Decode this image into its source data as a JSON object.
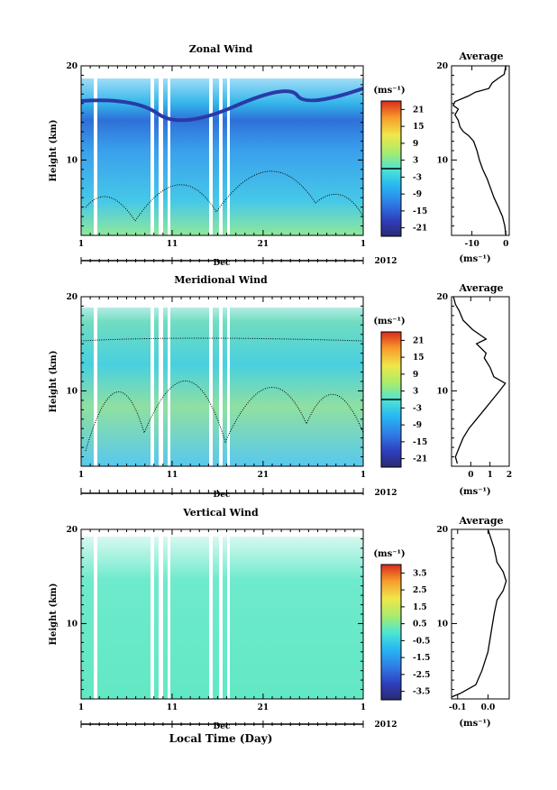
{
  "x_axis": {
    "ticks": [
      "1",
      "11",
      "21",
      "1"
    ],
    "month": "Dec",
    "year": "2012",
    "title": "Local Time (Day)"
  },
  "unit_label": "(ms⁻¹)",
  "chart_data": [
    {
      "type": "heatmap",
      "title": "Zonal Wind",
      "ylabel": "Height (km)",
      "ylim": [
        2,
        20
      ],
      "yticks": [
        "10",
        "20"
      ],
      "xlim_days": [
        1,
        32
      ],
      "colorbar": {
        "ticks": [
          "21",
          "15",
          "9",
          "3",
          "-3",
          "-9",
          "-15",
          "-21"
        ],
        "range": [
          -24,
          24
        ]
      },
      "profile": {
        "title": "Average",
        "xlabel": "(ms⁻¹)",
        "xlim": [
          -16,
          1
        ],
        "xticks": [
          "-10",
          "0"
        ],
        "tick_values": [
          -10,
          0
        ],
        "points": [
          [
            0,
            2
          ],
          [
            -0.3,
            3
          ],
          [
            -1,
            4
          ],
          [
            -2.2,
            5
          ],
          [
            -3.5,
            6
          ],
          [
            -4.5,
            7
          ],
          [
            -5.5,
            8
          ],
          [
            -6.8,
            9
          ],
          [
            -7.8,
            10
          ],
          [
            -8.5,
            11
          ],
          [
            -9.5,
            12
          ],
          [
            -11,
            12.6
          ],
          [
            -12.5,
            13
          ],
          [
            -13.5,
            13.5
          ],
          [
            -14,
            14.2
          ],
          [
            -15,
            14.8
          ],
          [
            -14,
            15.4
          ],
          [
            -15.5,
            15.8
          ],
          [
            -15,
            16.2
          ],
          [
            -11,
            16.8
          ],
          [
            -9,
            17.2
          ],
          [
            -5,
            17.6
          ],
          [
            -4,
            18.2
          ],
          [
            -2.5,
            18.6
          ],
          [
            -0.5,
            19.1
          ],
          [
            0,
            20
          ]
        ]
      }
    },
    {
      "type": "heatmap",
      "title": "Meridional Wind",
      "ylabel": "Height (km)",
      "ylim": [
        2,
        20
      ],
      "yticks": [
        "10",
        "20"
      ],
      "xlim_days": [
        1,
        32
      ],
      "colorbar": {
        "ticks": [
          "21",
          "15",
          "9",
          "3",
          "-3",
          "-9",
          "-15",
          "-21"
        ],
        "range": [
          -24,
          24
        ]
      },
      "profile": {
        "title": "Average",
        "xlabel": "(ms⁻¹)",
        "xlim": [
          -1,
          2
        ],
        "xticks": [
          "0",
          "1",
          "2"
        ],
        "tick_values": [
          0,
          1,
          2
        ],
        "points": [
          [
            -0.7,
            2.3
          ],
          [
            -0.8,
            3
          ],
          [
            -0.6,
            4
          ],
          [
            -0.4,
            5
          ],
          [
            -0.1,
            6
          ],
          [
            0.3,
            7
          ],
          [
            0.7,
            8
          ],
          [
            1.1,
            9
          ],
          [
            1.5,
            10
          ],
          [
            1.8,
            10.8
          ],
          [
            1.2,
            11.5
          ],
          [
            1,
            12.5
          ],
          [
            0.7,
            13.5
          ],
          [
            0.8,
            14
          ],
          [
            0.3,
            15
          ],
          [
            0.8,
            15.5
          ],
          [
            0.1,
            16.5
          ],
          [
            -0.4,
            17.5
          ],
          [
            -0.6,
            18.5
          ],
          [
            -0.8,
            19.2
          ],
          [
            -0.9,
            20
          ]
        ]
      }
    },
    {
      "type": "heatmap",
      "title": "Vertical Wind",
      "ylabel": "Height (km)",
      "ylim": [
        2,
        20
      ],
      "yticks": [
        "10",
        "20"
      ],
      "xlim_days": [
        1,
        32
      ],
      "colorbar": {
        "ticks": [
          "3.5",
          "2.5",
          "1.5",
          "0.5",
          "-0.5",
          "-1.5",
          "-2.5",
          "-3.5"
        ],
        "range": [
          -4,
          4
        ]
      },
      "profile": {
        "title": "Average",
        "xlabel": "(ms⁻¹)",
        "xlim": [
          -0.12,
          0.07
        ],
        "xticks": [
          "-0.1",
          "0.0"
        ],
        "tick_values": [
          -0.1,
          0
        ],
        "points": [
          [
            -0.12,
            2.2
          ],
          [
            -0.09,
            2.6
          ],
          [
            -0.04,
            3.5
          ],
          [
            -0.02,
            5
          ],
          [
            0,
            7
          ],
          [
            0.01,
            9
          ],
          [
            0.02,
            11
          ],
          [
            0.03,
            12.5
          ],
          [
            0.05,
            13.5
          ],
          [
            0.06,
            14.5
          ],
          [
            0.05,
            15.5
          ],
          [
            0.03,
            16.5
          ],
          [
            0.02,
            18
          ],
          [
            0.01,
            19
          ],
          [
            0,
            20
          ]
        ]
      }
    }
  ]
}
